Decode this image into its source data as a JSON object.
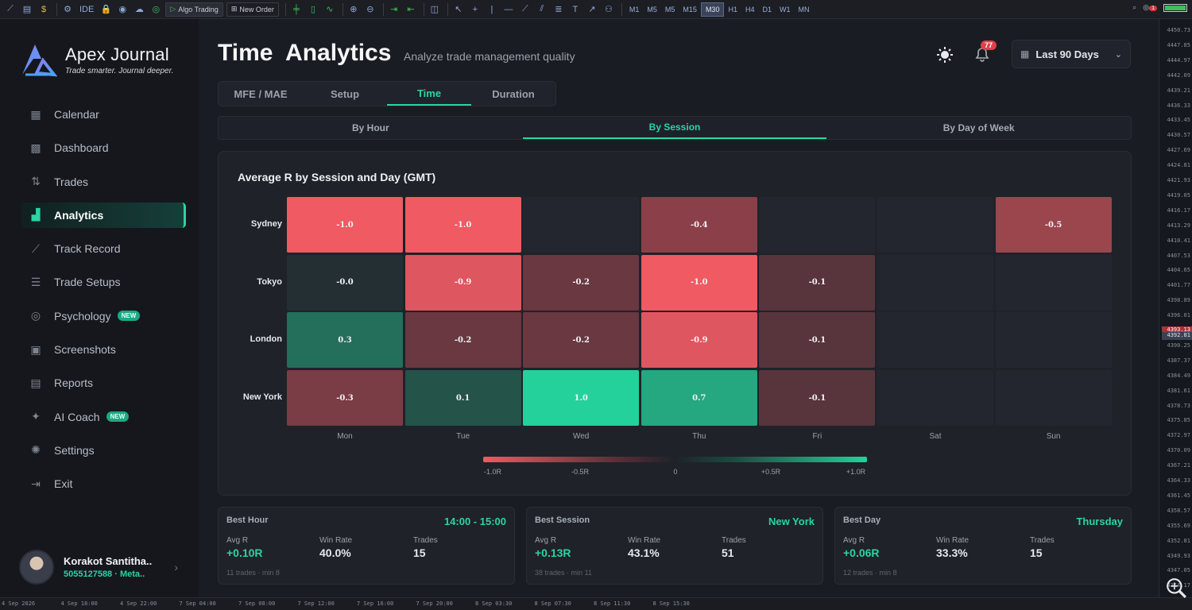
{
  "platform": {
    "toolbar": {
      "ide_label": "IDE",
      "algo_trading_label": "Algo Trading",
      "new_order_label": "New Order",
      "timeframes": [
        "M1",
        "M5",
        "M5",
        "M15",
        "M30",
        "H1",
        "H4",
        "D1",
        "W1",
        "MN"
      ],
      "active_timeframe": "M30",
      "notification_count": "1"
    },
    "price_ticks": [
      "4450.73",
      "4447.85",
      "4444.97",
      "4442.09",
      "4439.21",
      "4436.33",
      "4433.45",
      "4430.57",
      "4427.69",
      "4424.81",
      "4421.93",
      "4419.05",
      "4416.17",
      "4413.29",
      "4410.41",
      "4407.53",
      "4404.65",
      "4401.77",
      "4398.89",
      "4396.01",
      "4393.13",
      "4390.25",
      "4387.37",
      "4384.49",
      "4381.61",
      "4378.73",
      "4375.85",
      "4372.97",
      "4370.09",
      "4367.21",
      "4364.33",
      "4361.45",
      "4358.57",
      "4355.69",
      "4352.81",
      "4349.93",
      "4347.05",
      "4344.17"
    ],
    "price_highlight": "4393.13",
    "price_current": "4392.81",
    "time_ticks": [
      "4 Sep 2026",
      "4 Sep 18:00",
      "4 Sep 22:00",
      "7 Sep 04:00",
      "7 Sep 08:00",
      "7 Sep 12:00",
      "7 Sep 16:00",
      "7 Sep 20:00",
      "8 Sep 03:30",
      "8 Sep 07:30",
      "8 Sep 11:30",
      "8 Sep 15:30"
    ]
  },
  "brand": {
    "name": "Apex Journal",
    "tagline": "Trade smarter. Journal deeper."
  },
  "nav": [
    {
      "label": "Calendar",
      "icon": "calendar-icon"
    },
    {
      "label": "Dashboard",
      "icon": "grid-icon"
    },
    {
      "label": "Trades",
      "icon": "trades-icon"
    },
    {
      "label": "Analytics",
      "icon": "bar-chart-icon",
      "active": true
    },
    {
      "label": "Track Record",
      "icon": "trend-line-icon"
    },
    {
      "label": "Trade Setups",
      "icon": "sliders-icon"
    },
    {
      "label": "Psychology",
      "icon": "target-icon",
      "badge": "NEW"
    },
    {
      "label": "Screenshots",
      "icon": "image-icon"
    },
    {
      "label": "Reports",
      "icon": "document-icon"
    },
    {
      "label": "AI Coach",
      "icon": "sparkle-icon",
      "badge": "NEW"
    },
    {
      "label": "Settings",
      "icon": "gear-icon"
    },
    {
      "label": "Exit",
      "icon": "exit-icon"
    }
  ],
  "user": {
    "name": "Korakot Santitha..",
    "account": "5055127588",
    "platform": "Meta.."
  },
  "header": {
    "title": "Time  Analytics",
    "subtitle": "Analyze trade management quality",
    "notifications": "77",
    "date_range": "Last 90 Days"
  },
  "tabs": [
    "MFE / MAE",
    "Setup",
    "Time",
    "Duration"
  ],
  "active_tab": "Time",
  "subtabs": [
    "By Hour",
    "By Session",
    "By Day of Week"
  ],
  "active_subtab": "By Session",
  "heatmap": {
    "title": "Average R by Session and Day (GMT)",
    "legend": [
      "-1.0R",
      "-0.5R",
      "0",
      "+0.5R",
      "+1.0R"
    ]
  },
  "chart_data": {
    "type": "heatmap",
    "title": "Average R by Session and Day (GMT)",
    "rows": [
      "Sydney",
      "Tokyo",
      "London",
      "New York"
    ],
    "columns": [
      "Mon",
      "Tue",
      "Wed",
      "Thu",
      "Fri",
      "Sat",
      "Sun"
    ],
    "values": [
      [
        -1.0,
        -1.0,
        null,
        -0.4,
        null,
        null,
        -0.5
      ],
      [
        -0.0,
        -0.9,
        -0.2,
        -1.0,
        -0.1,
        null,
        null
      ],
      [
        0.3,
        -0.2,
        -0.2,
        -0.9,
        -0.1,
        null,
        null
      ],
      [
        -0.3,
        0.1,
        1.0,
        0.7,
        -0.1,
        null,
        null
      ]
    ],
    "labels": [
      [
        "-1.0",
        "-1.0",
        "",
        "-0.4",
        "",
        "",
        "-0.5"
      ],
      [
        "-0.0",
        "-0.9",
        "-0.2",
        "-1.0",
        "-0.1",
        "",
        ""
      ],
      [
        "0.3",
        "-0.2",
        "-0.2",
        "-0.9",
        "-0.1",
        "",
        ""
      ],
      [
        "-0.3",
        "0.1",
        "1.0",
        "0.7",
        "-0.1",
        "",
        ""
      ]
    ],
    "scale": [
      -1.0,
      1.0
    ],
    "colors": {
      "negative": "#ef5a63",
      "positive": "#25d19a",
      "empty": "#23262e"
    }
  },
  "stats": [
    {
      "title": "Best Hour",
      "head": "14:00 - 15:00",
      "avg_r_label": "Avg R",
      "avg_r": "+0.10R",
      "win_label": "Win Rate",
      "win": "40.0%",
      "trades_label": "Trades",
      "trades": "15",
      "foot": "11 trades · min 8"
    },
    {
      "title": "Best Session",
      "head": "New York",
      "avg_r_label": "Avg R",
      "avg_r": "+0.13R",
      "win_label": "Win Rate",
      "win": "43.1%",
      "trades_label": "Trades",
      "trades": "51",
      "foot": "38 trades · min 11"
    },
    {
      "title": "Best Day",
      "head": "Thursday",
      "avg_r_label": "Avg R",
      "avg_r": "+0.06R",
      "win_label": "Win Rate",
      "win": "33.3%",
      "trades_label": "Trades",
      "trades": "15",
      "foot": "12 trades · min 8"
    }
  ]
}
